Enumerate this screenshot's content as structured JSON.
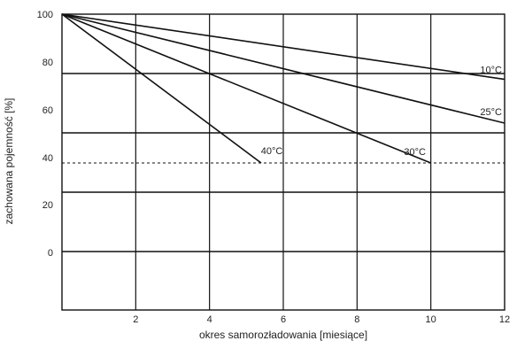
{
  "chart_data": {
    "type": "line",
    "xlabel": "okres samorozładowania [miesiące]",
    "ylabel": "zachowana pojemność [%]",
    "xlim": [
      0,
      12
    ],
    "x_ticks": [
      2,
      4,
      6,
      8,
      10,
      12
    ],
    "y_ticks": [
      100,
      80,
      60,
      40,
      20,
      0
    ],
    "grid": true,
    "series": [
      {
        "name": "10°C",
        "x": [
          0,
          12
        ],
        "y": [
          100,
          78
        ]
      },
      {
        "name": "25°C",
        "x": [
          0,
          12
        ],
        "y": [
          100,
          63
        ]
      },
      {
        "name": "30°C",
        "x": [
          0,
          10
        ],
        "y": [
          100,
          43
        ]
      },
      {
        "name": "40°C",
        "x": [
          0,
          5.4
        ],
        "y": [
          100,
          43
        ]
      }
    ],
    "reference_line": {
      "y": 43,
      "style": "dashed"
    }
  }
}
